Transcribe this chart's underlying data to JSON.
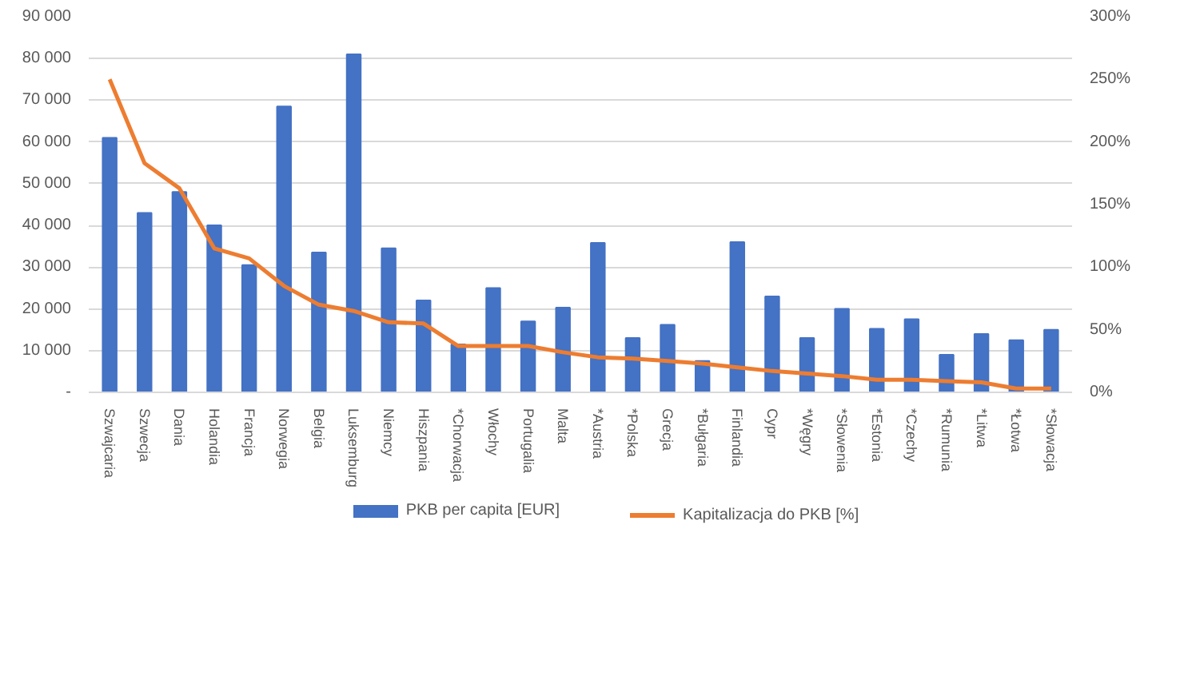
{
  "chart_data": {
    "type": "bar",
    "categories": [
      "Szwajcaria",
      "Szwecja",
      "Dania",
      "Holandia",
      "Francja",
      "Norwegia",
      "Belgia",
      "Luksemburg",
      "Niemcy",
      "Hiszpania",
      "*Chorwacja",
      "Włochy",
      "Portugalia",
      "Malta",
      "*Austria",
      "*Polska",
      "Grecja",
      "*Bułgaria",
      "Finlandia",
      "Cypr",
      "*Węgry",
      "*Słowenia",
      "*Estonia",
      "*Czechy",
      "*Rumunia",
      "*Litwa",
      "*Łotwa",
      "*Słowacja"
    ],
    "series": [
      {
        "name": "PKB per capita [EUR]",
        "color": "#4472c4",
        "values": [
          61000,
          43000,
          48000,
          40000,
          30500,
          68500,
          33500,
          81000,
          34500,
          22000,
          11500,
          25000,
          17000,
          20300,
          35800,
          13000,
          16200,
          7500,
          36000,
          23000,
          13000,
          20000,
          15200,
          17500,
          9000,
          14000,
          12500,
          15000
        ]
      },
      {
        "name": "Kapitalizacja do PKB [%]",
        "type": "line",
        "axis": "y2",
        "color": "#ed7d31",
        "values": [
          250,
          183,
          163,
          115,
          107,
          85,
          70,
          65,
          56,
          55,
          37,
          37,
          37,
          32,
          28,
          27,
          25,
          23,
          20,
          17,
          15,
          13,
          10,
          10,
          9,
          8,
          3,
          3
        ]
      }
    ],
    "ylim": [
      0,
      90000
    ],
    "yticks": [
      {
        "value": 0,
        "label": "-"
      },
      {
        "value": 10000,
        "label": "10 000"
      },
      {
        "value": 20000,
        "label": "20 000"
      },
      {
        "value": 30000,
        "label": "30 000"
      },
      {
        "value": 40000,
        "label": "40 000"
      },
      {
        "value": 50000,
        "label": "50 000"
      },
      {
        "value": 60000,
        "label": "60 000"
      },
      {
        "value": 70000,
        "label": "70 000"
      },
      {
        "value": 80000,
        "label": "80 000"
      },
      {
        "value": 90000,
        "label": "90 000"
      }
    ],
    "y2lim": [
      0,
      300
    ],
    "y2ticks": [
      {
        "value": 0,
        "label": "0%"
      },
      {
        "value": 50,
        "label": "50%"
      },
      {
        "value": 100,
        "label": "100%"
      },
      {
        "value": 150,
        "label": "150%"
      },
      {
        "value": 200,
        "label": "200%"
      },
      {
        "value": 250,
        "label": "250%"
      },
      {
        "value": 300,
        "label": "300%"
      }
    ],
    "grid": "y",
    "legend": "bottom"
  }
}
